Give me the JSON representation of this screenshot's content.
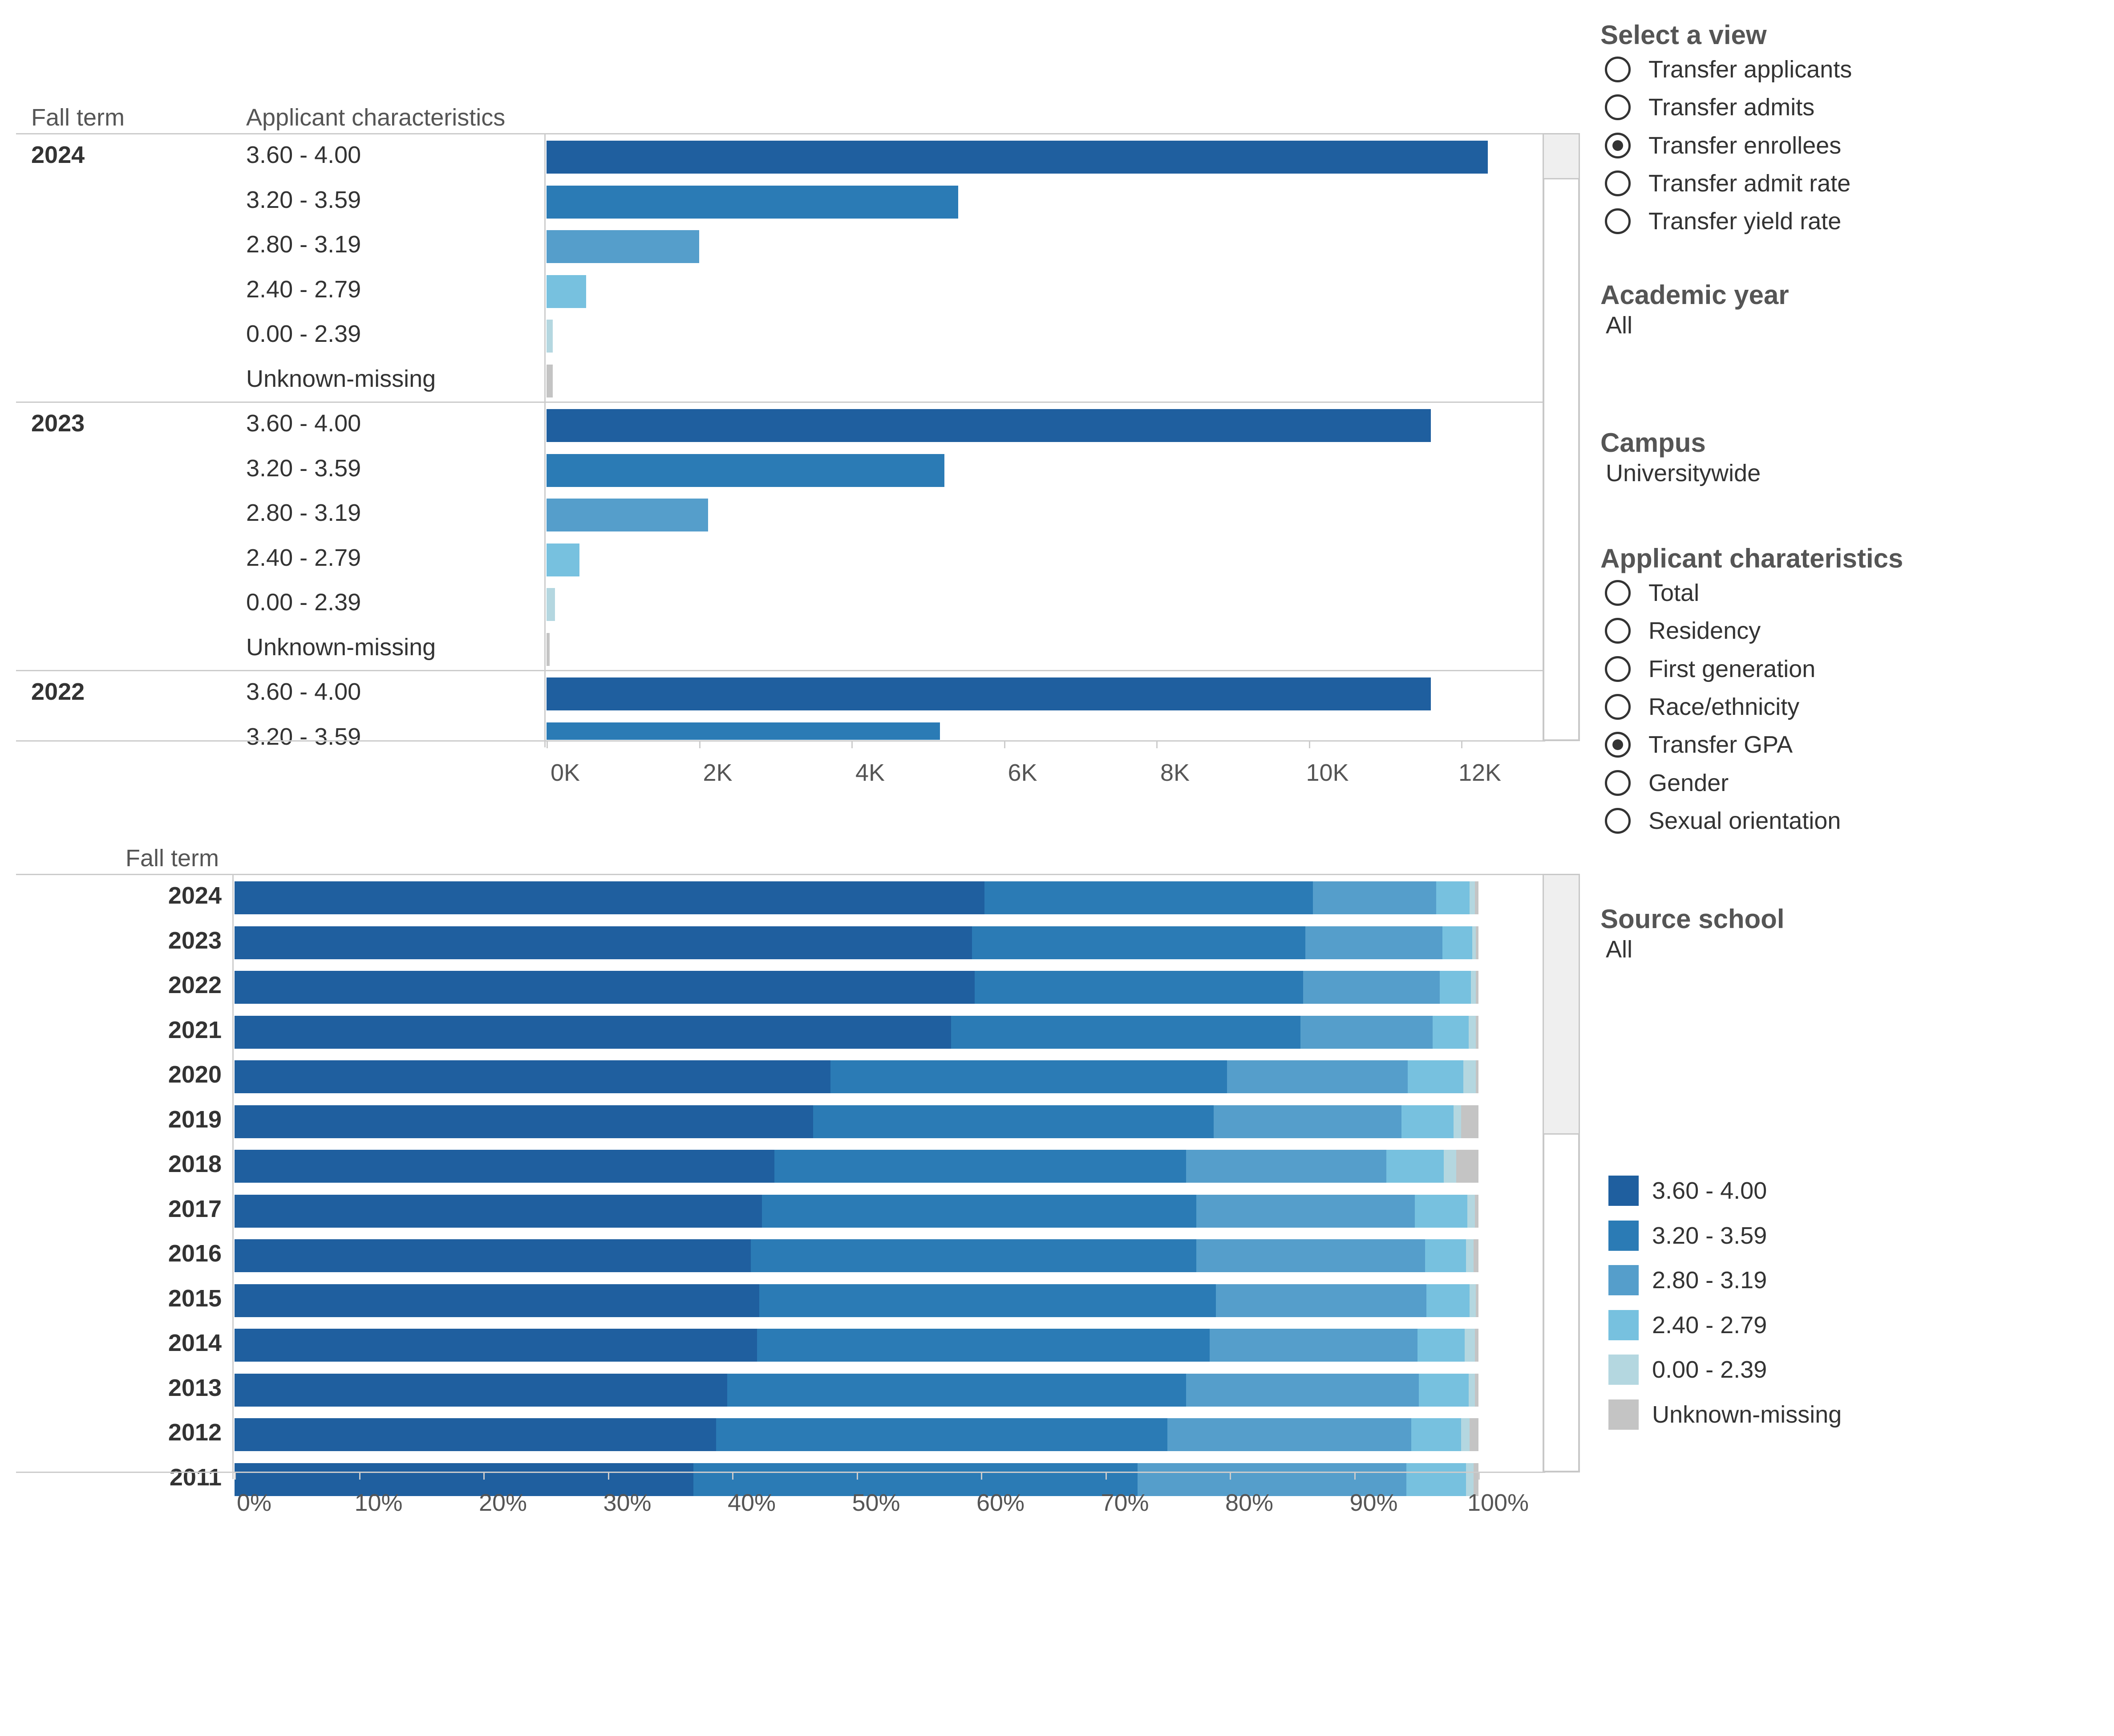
{
  "colors": {
    "3.60 - 4.00": "#1f5f9f",
    "3.20 - 3.59": "#2b7bb5",
    "2.80 - 3.19": "#559ecb",
    "2.40 - 2.79": "#77c1df",
    "0.00 - 2.39": "#b4d7e0",
    "Unknown-missing": "#c4c4c4"
  },
  "top_chart": {
    "header_fall_term": "Fall term",
    "header_characteristics": "Applicant characteristics"
  },
  "bottom_chart": {
    "header_fall_term": "Fall term"
  },
  "chart_data": [
    {
      "type": "bar",
      "orientation": "horizontal",
      "title": "",
      "xlabel": "",
      "ylabel": "Fall term / Applicant characteristics",
      "xlim": [
        0,
        13000
      ],
      "x_ticks": [
        "0K",
        "2K",
        "4K",
        "6K",
        "8K",
        "10K",
        "12K"
      ],
      "x_tick_values": [
        0,
        2000,
        4000,
        6000,
        8000,
        10000,
        12000
      ],
      "groups": [
        {
          "term": "2024",
          "categories": [
            "3.60 - 4.00",
            "3.20 - 3.59",
            "2.80 - 3.19",
            "2.40 - 2.79",
            "0.00 - 2.39",
            "Unknown-missing"
          ],
          "values": [
            12350,
            5400,
            2000,
            520,
            80,
            80
          ]
        },
        {
          "term": "2023",
          "categories": [
            "3.60 - 4.00",
            "3.20 - 3.59",
            "2.80 - 3.19",
            "2.40 - 2.79",
            "0.00 - 2.39",
            "Unknown-missing"
          ],
          "values": [
            11600,
            5220,
            2120,
            430,
            110,
            40
          ]
        },
        {
          "term": "2022",
          "categories": [
            "3.60 - 4.00",
            "3.20 - 3.59"
          ],
          "values": [
            11600,
            5160
          ]
        }
      ]
    },
    {
      "type": "bar",
      "orientation": "horizontal",
      "stacked": "percent",
      "title": "",
      "xlabel": "",
      "ylabel": "Fall term",
      "xlim": [
        0,
        100
      ],
      "x_ticks": [
        "0%",
        "10%",
        "20%",
        "30%",
        "40%",
        "50%",
        "60%",
        "70%",
        "80%",
        "90%",
        "100%"
      ],
      "x_tick_values": [
        0,
        10,
        20,
        30,
        40,
        50,
        60,
        70,
        80,
        90,
        100
      ],
      "series_names": [
        "3.60 - 4.00",
        "3.20 - 3.59",
        "2.80 - 3.19",
        "2.40 - 2.79",
        "0.00 - 2.39",
        "Unknown-missing"
      ],
      "rows": [
        {
          "term": "2024",
          "values": [
            60.3,
            26.4,
            9.9,
            2.7,
            0.4,
            0.3
          ]
        },
        {
          "term": "2023",
          "values": [
            59.3,
            26.8,
            11.0,
            2.4,
            0.3,
            0.2
          ]
        },
        {
          "term": "2022",
          "values": [
            59.5,
            26.4,
            11.0,
            2.5,
            0.4,
            0.2
          ]
        },
        {
          "term": "2021",
          "values": [
            57.6,
            28.1,
            10.6,
            2.9,
            0.6,
            0.2
          ]
        },
        {
          "term": "2020",
          "values": [
            47.9,
            31.9,
            14.5,
            4.5,
            1.0,
            0.2
          ]
        },
        {
          "term": "2019",
          "values": [
            46.5,
            32.2,
            15.1,
            4.2,
            0.6,
            1.4
          ]
        },
        {
          "term": "2018",
          "values": [
            43.4,
            33.1,
            16.1,
            4.6,
            1.0,
            1.8
          ]
        },
        {
          "term": "2017",
          "values": [
            42.4,
            34.9,
            17.6,
            4.2,
            0.6,
            0.3
          ]
        },
        {
          "term": "2016",
          "values": [
            41.5,
            35.8,
            18.4,
            3.3,
            0.6,
            0.4
          ]
        },
        {
          "term": "2015",
          "values": [
            42.2,
            36.7,
            16.9,
            3.5,
            0.5,
            0.2
          ]
        },
        {
          "term": "2014",
          "values": [
            42.0,
            36.4,
            16.7,
            3.8,
            0.8,
            0.3
          ]
        },
        {
          "term": "2013",
          "values": [
            39.6,
            36.9,
            18.7,
            4.0,
            0.5,
            0.3
          ]
        },
        {
          "term": "2012",
          "values": [
            38.7,
            36.3,
            19.6,
            4.0,
            0.7,
            0.7
          ]
        },
        {
          "term": "2011",
          "values": [
            36.9,
            35.7,
            21.6,
            4.8,
            0.6,
            0.4
          ]
        }
      ]
    }
  ],
  "sidebar": {
    "select_view": {
      "title": "Select a view",
      "options": [
        {
          "label": "Transfer applicants",
          "selected": false
        },
        {
          "label": "Transfer admits",
          "selected": false
        },
        {
          "label": "Transfer enrollees",
          "selected": true
        },
        {
          "label": "Transfer admit rate",
          "selected": false
        },
        {
          "label": "Transfer yield rate",
          "selected": false
        }
      ]
    },
    "academic_year": {
      "title": "Academic year",
      "value": "All"
    },
    "campus": {
      "title": "Campus",
      "value": "Universitywide"
    },
    "applicant_characteristics": {
      "title": "Applicant charateristics",
      "options": [
        {
          "label": "Total",
          "selected": false
        },
        {
          "label": "Residency",
          "selected": false
        },
        {
          "label": "First generation",
          "selected": false
        },
        {
          "label": "Race/ethnicity",
          "selected": false
        },
        {
          "label": "Transfer GPA",
          "selected": true
        },
        {
          "label": "Gender",
          "selected": false
        },
        {
          "label": "Sexual orientation",
          "selected": false
        }
      ]
    },
    "source_school": {
      "title": "Source school",
      "value": "All"
    },
    "legend": {
      "items": [
        {
          "label": "3.60 - 4.00",
          "color": "#1f5f9f"
        },
        {
          "label": "3.20 - 3.59",
          "color": "#2b7bb5"
        },
        {
          "label": "2.80 - 3.19",
          "color": "#559ecb"
        },
        {
          "label": "2.40 - 2.79",
          "color": "#77c1df"
        },
        {
          "label": "0.00 - 2.39",
          "color": "#b4d7e0"
        },
        {
          "label": "Unknown-missing",
          "color": "#c4c4c4"
        }
      ]
    }
  }
}
